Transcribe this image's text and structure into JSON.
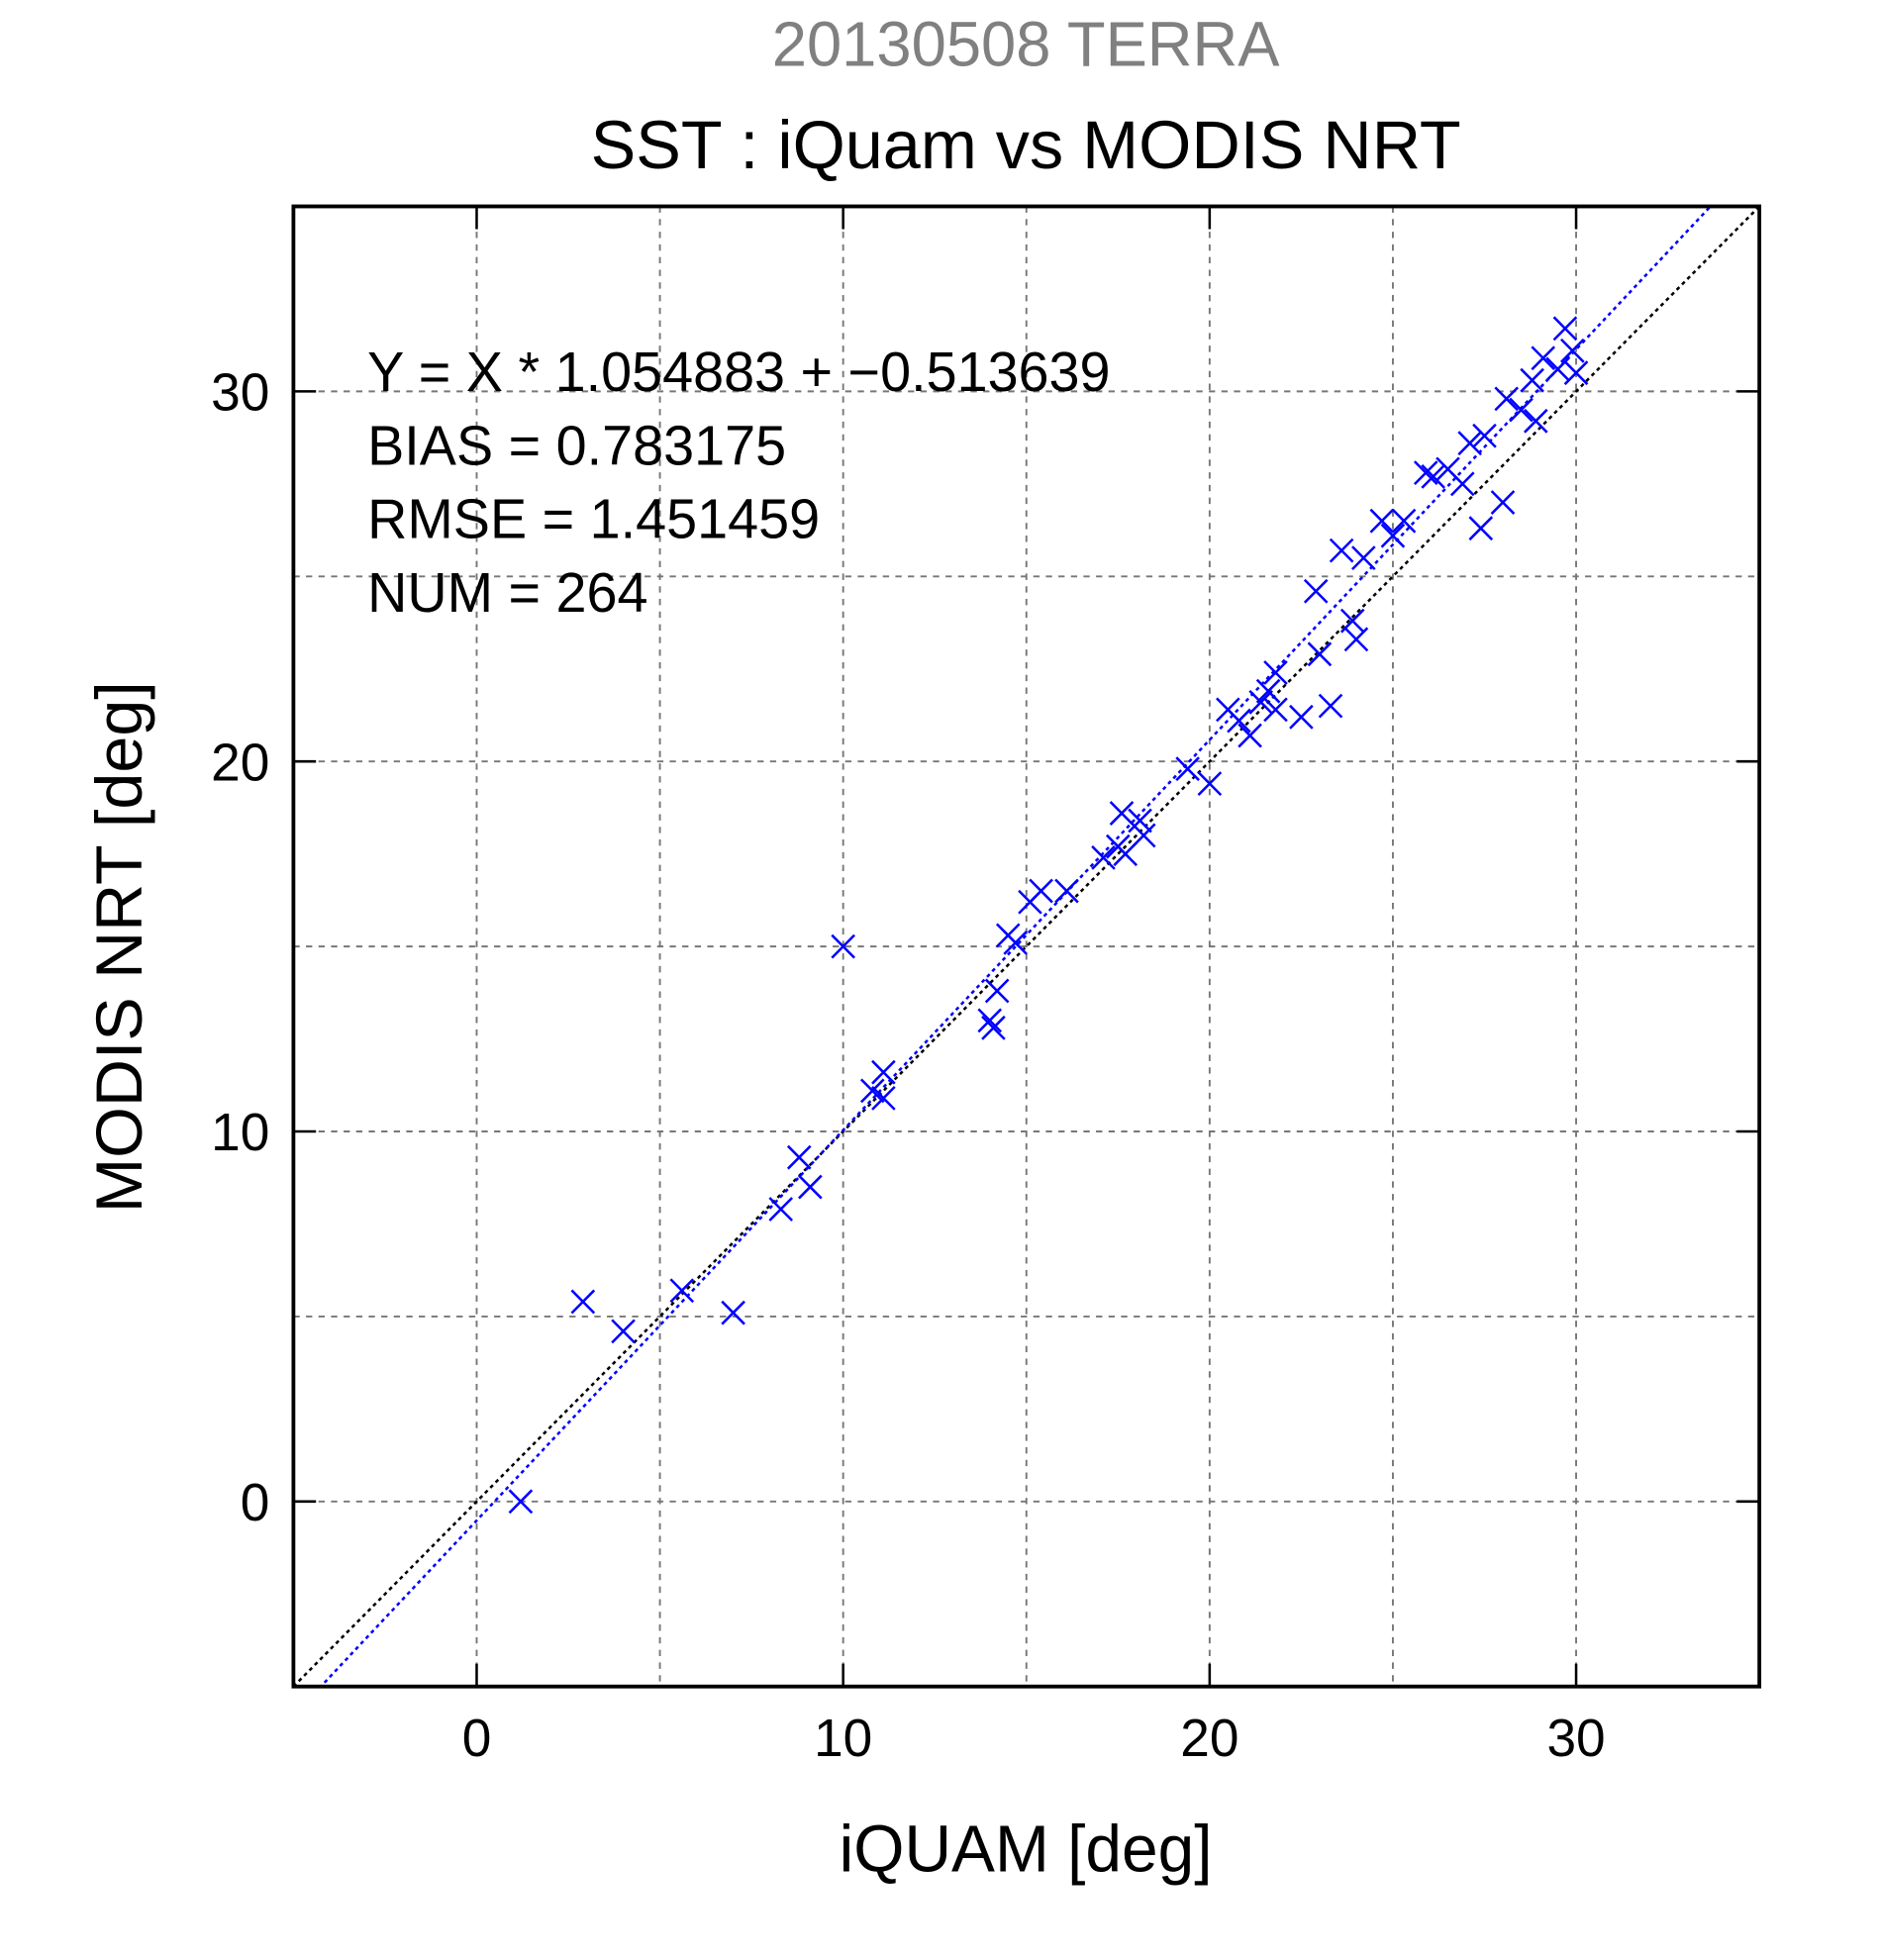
{
  "chart_data": {
    "type": "scatter",
    "title": "20130508 TERRA",
    "subtitle": "SST : iQuam vs MODIS NRT",
    "xlabel": "iQUAM [deg]",
    "ylabel": "MODIS NRT [deg]",
    "annotations": [
      "Y = X * 1.054883 + −0.513639",
      "BIAS = 0.783175",
      "RMSE = 1.451459",
      "NUM = 264"
    ],
    "fit_line": {
      "slope": 1.054883,
      "intercept": -0.513639,
      "color": "#0000ff"
    },
    "identity_line": true,
    "color": "#0000ff",
    "x": [
      1.2,
      2.9,
      4.0,
      5.6,
      7.0,
      8.3,
      8.8,
      9.1,
      10.0,
      10.8,
      11.1,
      11.1,
      14.0,
      14.1,
      14.2,
      14.5,
      14.7,
      15.1,
      15.4,
      16.1,
      17.1,
      17.5,
      17.6,
      17.7,
      18.1,
      18.2,
      19.4,
      20.0,
      20.5,
      20.8,
      21.1,
      21.4,
      21.6,
      21.8,
      21.8,
      22.5,
      22.9,
      23.0,
      23.3,
      23.6,
      23.9,
      24.0,
      24.2,
      24.7,
      25.0,
      25.3,
      25.9,
      26.1,
      26.5,
      26.9,
      27.1,
      27.4,
      27.5,
      28.0,
      28.1,
      28.5,
      28.8,
      28.9,
      29.1,
      29.5,
      29.7,
      29.9,
      30.0
    ],
    "values": [
      0.0,
      5.4,
      4.6,
      5.7,
      5.1,
      7.9,
      9.3,
      8.5,
      15.0,
      11.1,
      11.6,
      10.9,
      13.0,
      12.8,
      13.8,
      15.3,
      15.1,
      16.2,
      16.5,
      16.5,
      17.4,
      17.7,
      18.6,
      17.5,
      18.4,
      18.0,
      19.8,
      19.4,
      21.4,
      21.1,
      20.7,
      21.6,
      21.9,
      22.4,
      21.4,
      21.2,
      24.6,
      22.9,
      21.5,
      25.7,
      23.8,
      23.3,
      25.5,
      26.5,
      26.1,
      26.5,
      27.8,
      27.7,
      27.9,
      27.5,
      28.6,
      26.3,
      28.8,
      27.0,
      29.8,
      29.5,
      30.3,
      29.2,
      30.9,
      30.6,
      31.7,
      31.1,
      30.5
    ],
    "xlim": [
      -5,
      35
    ],
    "ylim": [
      -5,
      35
    ],
    "xticks": [
      0,
      10,
      20,
      30
    ],
    "yticks": [
      0,
      10,
      20,
      30
    ],
    "xminorticks": [
      5,
      15,
      25
    ],
    "yminorticks": [
      5,
      15,
      25
    ],
    "grid": true
  }
}
